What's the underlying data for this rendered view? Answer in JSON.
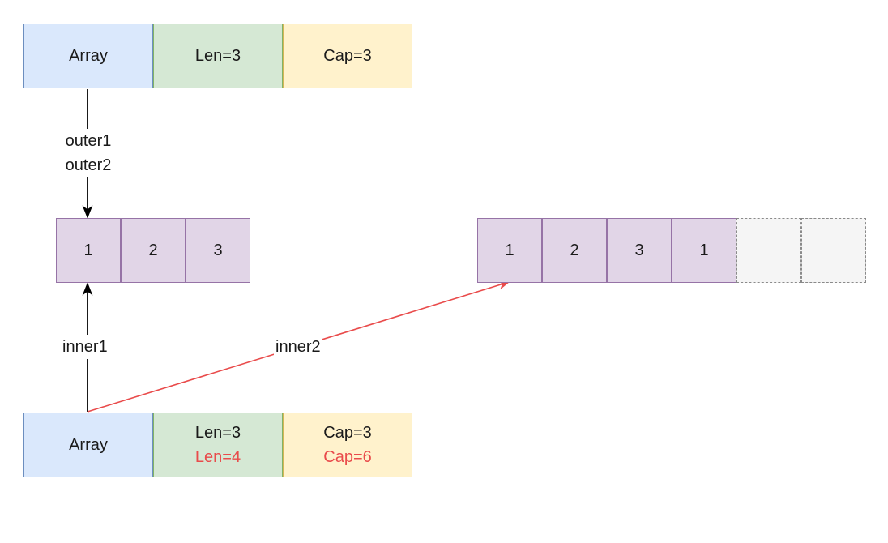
{
  "outer_header": {
    "array": "Array",
    "len": "Len=3",
    "cap": "Cap=3"
  },
  "outer_labels": [
    "outer1",
    "outer2"
  ],
  "original_array": [
    "1",
    "2",
    "3"
  ],
  "inner1_label": "inner1",
  "inner2_label": "inner2",
  "new_array": {
    "values": [
      "1",
      "2",
      "3",
      "1"
    ],
    "empty_slots": 2
  },
  "inner_header": {
    "array": "Array",
    "len_old": "Len=3",
    "len_new": "Len=4",
    "cap_old": "Cap=3",
    "cap_new": "Cap=6"
  },
  "colors": {
    "highlight": "#e94b4b",
    "arrow": "#000000"
  }
}
